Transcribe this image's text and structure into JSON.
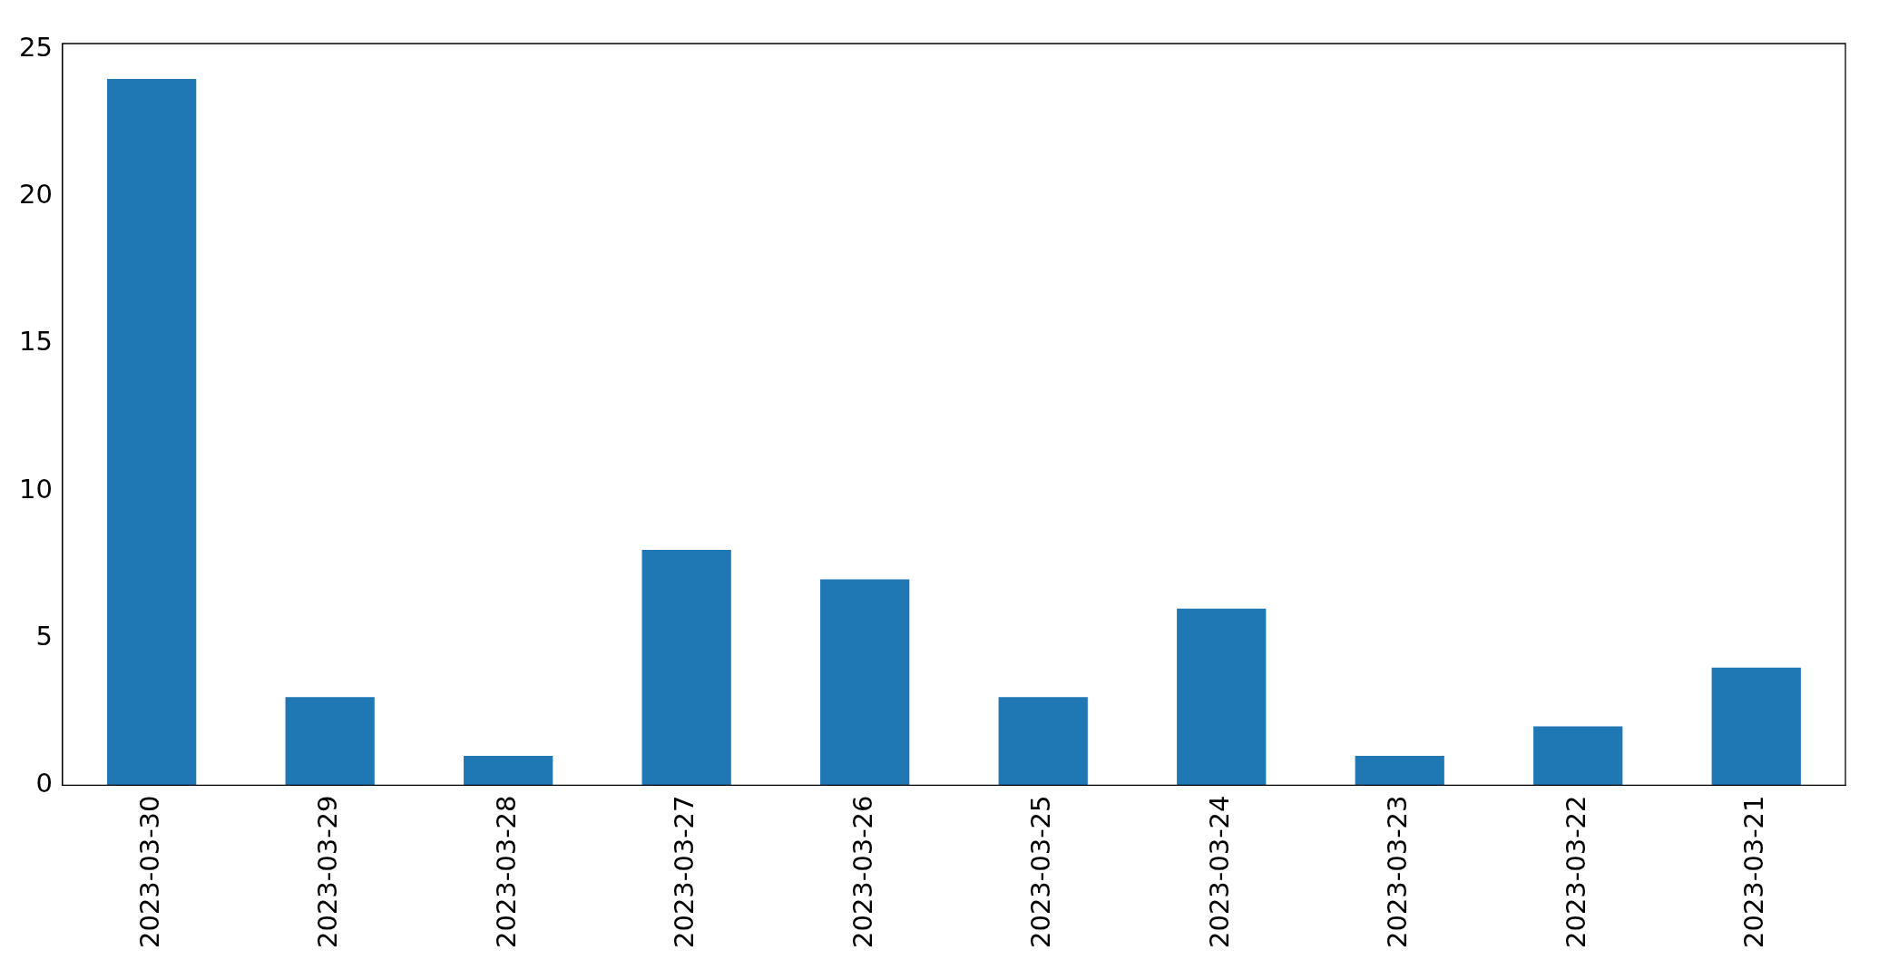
{
  "chart_data": {
    "type": "bar",
    "categories": [
      "2023-03-30",
      "2023-03-29",
      "2023-03-28",
      "2023-03-27",
      "2023-03-26",
      "2023-03-25",
      "2023-03-24",
      "2023-03-23",
      "2023-03-22",
      "2023-03-21"
    ],
    "values": [
      24,
      3,
      1,
      8,
      7,
      3,
      6,
      1,
      2,
      4
    ],
    "color": "#1f77b4",
    "ylim": [
      0,
      25.2
    ],
    "yticks": [
      0,
      5,
      10,
      15,
      20,
      25
    ],
    "grid": false
  }
}
